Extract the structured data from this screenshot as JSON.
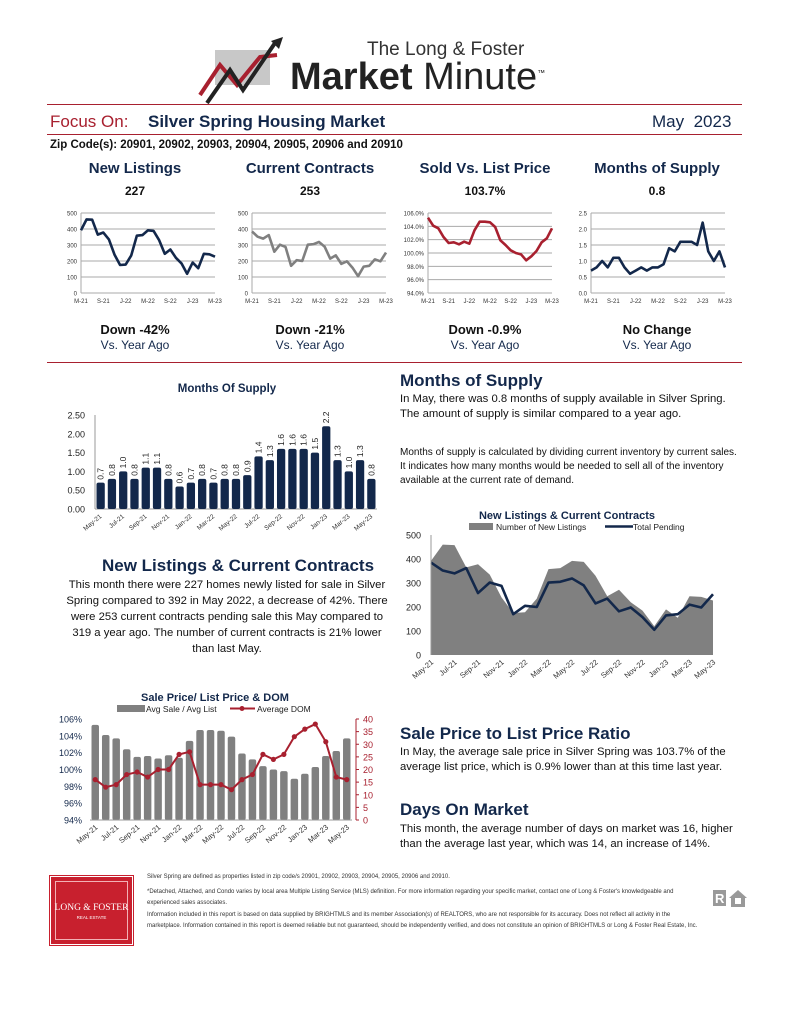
{
  "header": {
    "logo_line1": "The Long & Foster",
    "logo_line2a": "Market",
    "logo_line2b": "Minute",
    "tm": "™"
  },
  "focus": {
    "label": "Focus On:",
    "market": "Silver Spring Housing Market",
    "month": "May",
    "year": "2023"
  },
  "zip": "Zip Code(s): 20901, 20902, 20903, 20904, 20905, 20906 and 20910",
  "kpis": [
    {
      "title": "New Listings",
      "value": "227",
      "change": "Down  -42%",
      "compare": "Vs. Year Ago"
    },
    {
      "title": "Current Contracts",
      "value": "253",
      "change": "Down  -21%",
      "compare": "Vs. Year Ago"
    },
    {
      "title": "Sold Vs. List Price",
      "value": "103.7%",
      "change": "Down  -0.9%",
      "compare": "Vs. Year Ago"
    },
    {
      "title": "Months of Supply",
      "value": "0.8",
      "change": "No Change",
      "compare": "Vs. Year Ago"
    }
  ],
  "sections": {
    "mos_title": "Months of Supply",
    "mos_text1": "In May, there was 0.8 months of supply available in Silver Spring. The amount of supply is similar compared to a year ago.",
    "mos_text2": "Months of supply is calculated by dividing current inventory by current sales. It indicates how many months would be needed to sell all of the inventory available at the current rate of demand.",
    "nl_title": "New Listings & Current Contracts",
    "nl_text": "This month there were 227 homes newly listed for sale in Silver Spring compared to 392 in May 2022, a decrease of 42%. There were 253 current contracts pending sale this May compared to 319 a year ago. The number of current contracts is 21% lower than last  May.",
    "sp_title": "Sale Price to List Price Ratio",
    "sp_text": "In May, the average sale price in Silver Spring was 103.7% of the average list price, which is 0.9% lower than at this time last year.",
    "dom_title": "Days On Market",
    "dom_text": "This month, the average number of days on market was 16, higher than the average last year, which was 14, an increase of 14%."
  },
  "footer": {
    "logo": "LONG & FOSTER",
    "logo_sub": "REAL ESTATE",
    "line1": "Silver Spring are defined as properties listed in zip code/s 20901, 20902, 20903, 20904, 20905, 20906 and 20910.",
    "line2": "*Detached, Attached, and Condo varies by local area Multiple Listing Service (MLS) definition. For more information regarding your specific market, contact one of Long & Foster's knowledgeable and experienced sales associates.",
    "line3": "Information included in this report is based on data supplied by BRIGHTMLS and its member Association(s) of REALTORS, who are not responsible for its accuracy.  Does not reflect all activity in the marketplace.  Information contained in this report is deemed reliable but not guaranteed, should be independently verified, and does not constitute an opinion of BRIGHTMLS or Long & Foster Real Estate, Inc."
  },
  "colors": {
    "navy": "#13284b",
    "red": "#a8202f",
    "gray": "#808080"
  },
  "chart_data": [
    {
      "id": "mini-new-listings",
      "type": "line",
      "x_ticks": [
        "M-21",
        "S-21",
        "J-22",
        "M-22",
        "S-22",
        "J-23",
        "M-23"
      ],
      "y_ticks": [
        "0",
        "100",
        "200",
        "300",
        "400",
        "500"
      ],
      "ylim": [
        0,
        500
      ],
      "color": "#13284b",
      "values": [
        392,
        460,
        458,
        365,
        378,
        335,
        240,
        175,
        178,
        235,
        358,
        362,
        392,
        388,
        330,
        245,
        272,
        220,
        185,
        120,
        190,
        155,
        245,
        242,
        227
      ]
    },
    {
      "id": "mini-contracts",
      "type": "line",
      "x_ticks": [
        "M-21",
        "S-21",
        "J-22",
        "M-22",
        "S-22",
        "J-23",
        "M-23"
      ],
      "y_ticks": [
        "0",
        "100",
        "200",
        "300",
        "400",
        "500"
      ],
      "ylim": [
        0,
        500
      ],
      "color": "#808080",
      "values": [
        385,
        352,
        340,
        362,
        258,
        302,
        288,
        170,
        205,
        200,
        302,
        305,
        319,
        290,
        215,
        235,
        182,
        198,
        158,
        105,
        165,
        170,
        210,
        198,
        253
      ]
    },
    {
      "id": "mini-sold-list",
      "type": "line",
      "x_ticks": [
        "M-21",
        "S-21",
        "J-22",
        "M-22",
        "S-22",
        "J-23",
        "M-23"
      ],
      "y_ticks": [
        "94.0%",
        "96.0%",
        "98.0%",
        "100.0%",
        "102.0%",
        "104.0%",
        "106.0%"
      ],
      "ylim": [
        94,
        106
      ],
      "color": "#a8202f",
      "values": [
        105.3,
        104.1,
        103.7,
        102.4,
        101.5,
        101.6,
        101.3,
        101.7,
        101.4,
        103.4,
        104.7,
        104.7,
        104.6,
        103.9,
        101.9,
        101.2,
        100.4,
        100.0,
        99.8,
        98.9,
        99.5,
        100.3,
        101.6,
        102.2,
        103.7
      ]
    },
    {
      "id": "mini-mos",
      "type": "line",
      "x_ticks": [
        "M-21",
        "S-21",
        "J-22",
        "M-22",
        "S-22",
        "J-23",
        "M-23"
      ],
      "y_ticks": [
        "0.0",
        "0.5",
        "1.0",
        "1.5",
        "2.0",
        "2.5"
      ],
      "ylim": [
        0,
        2.5
      ],
      "color": "#13284b",
      "values": [
        0.7,
        0.8,
        1.0,
        0.8,
        1.1,
        1.1,
        0.8,
        0.6,
        0.7,
        0.8,
        0.7,
        0.8,
        0.8,
        0.9,
        1.4,
        1.3,
        1.6,
        1.6,
        1.6,
        1.5,
        2.2,
        1.3,
        1.0,
        1.3,
        0.8
      ]
    },
    {
      "id": "mos-bar",
      "type": "bar",
      "title": "Months Of Supply",
      "y_ticks": [
        "0.00",
        "0.50",
        "1.00",
        "1.50",
        "2.00",
        "2.50"
      ],
      "ylim": [
        0,
        2.5
      ],
      "categories": [
        "May-21",
        "Jun-21",
        "Jul-21",
        "Aug-21",
        "Sep-21",
        "Oct-21",
        "Nov-21",
        "Dec-21",
        "Jan-22",
        "Feb-22",
        "Mar-22",
        "Apr-22",
        "May-22",
        "Jun-22",
        "Jul-22",
        "Aug-22",
        "Sep-22",
        "Oct-22",
        "Nov-22",
        "Dec-22",
        "Jan-23",
        "Feb-23",
        "Mar-23",
        "Apr-23",
        "May-23"
      ],
      "values": [
        0.7,
        0.8,
        1.0,
        0.8,
        1.1,
        1.1,
        0.8,
        0.6,
        0.7,
        0.8,
        0.7,
        0.8,
        0.8,
        0.9,
        1.4,
        1.3,
        1.6,
        1.6,
        1.6,
        1.5,
        2.2,
        1.3,
        1.0,
        1.3,
        0.8
      ]
    },
    {
      "id": "nl-cc",
      "type": "area+line",
      "title": "New Listings & Current Contracts",
      "y_ticks": [
        "0",
        "100",
        "200",
        "300",
        "400",
        "500"
      ],
      "ylim": [
        0,
        500
      ],
      "legend": "top",
      "categories": [
        "May-21",
        "Jun-21",
        "Jul-21",
        "Aug-21",
        "Sep-21",
        "Oct-21",
        "Nov-21",
        "Dec-21",
        "Jan-22",
        "Feb-22",
        "Mar-22",
        "Apr-22",
        "May-22",
        "Jun-22",
        "Jul-22",
        "Aug-22",
        "Sep-22",
        "Oct-22",
        "Nov-22",
        "Dec-22",
        "Jan-23",
        "Feb-23",
        "Mar-23",
        "Apr-23",
        "May-23"
      ],
      "series": [
        {
          "name": "Number of New Listings",
          "type": "area",
          "values": [
            392,
            460,
            458,
            365,
            378,
            335,
            240,
            175,
            178,
            235,
            358,
            362,
            392,
            388,
            330,
            245,
            272,
            220,
            185,
            120,
            190,
            155,
            245,
            242,
            227
          ]
        },
        {
          "name": "Total Pending",
          "type": "line",
          "values": [
            385,
            352,
            340,
            362,
            258,
            302,
            288,
            170,
            205,
            200,
            302,
            305,
            319,
            290,
            215,
            235,
            182,
            198,
            158,
            105,
            165,
            170,
            210,
            198,
            253
          ]
        }
      ]
    },
    {
      "id": "sp-dom",
      "type": "bar+line",
      "title": "Sale Price/ List Price & DOM",
      "y_ticks": [
        "94%",
        "96%",
        "98%",
        "100%",
        "102%",
        "104%",
        "106%"
      ],
      "ylim": [
        94,
        106
      ],
      "y2_ticks": [
        "0",
        "5",
        "10",
        "15",
        "20",
        "25",
        "30",
        "35",
        "40"
      ],
      "y2lim": [
        0,
        40
      ],
      "legend": "top",
      "categories": [
        "May-21",
        "Jun-21",
        "Jul-21",
        "Aug-21",
        "Sep-21",
        "Oct-21",
        "Nov-21",
        "Dec-21",
        "Jan-22",
        "Feb-22",
        "Mar-22",
        "Apr-22",
        "May-22",
        "Jun-22",
        "Jul-22",
        "Aug-22",
        "Sep-22",
        "Oct-22",
        "Nov-22",
        "Dec-22",
        "Jan-23",
        "Feb-23",
        "Mar-23",
        "Apr-23",
        "May-23"
      ],
      "series": [
        {
          "name": "Avg Sale / Avg List",
          "type": "bar",
          "values": [
            105.3,
            104.1,
            103.7,
            102.4,
            101.5,
            101.6,
            101.3,
            101.7,
            101.4,
            103.4,
            104.7,
            104.7,
            104.6,
            103.9,
            101.9,
            101.2,
            100.4,
            100.0,
            99.8,
            98.9,
            99.5,
            100.3,
            101.6,
            102.2,
            103.7
          ]
        },
        {
          "name": "Average DOM",
          "type": "line",
          "values": [
            16,
            13,
            14,
            18,
            19,
            17,
            20,
            20,
            26,
            27,
            14,
            14,
            14,
            12,
            16,
            18,
            26,
            24,
            26,
            33,
            36,
            38,
            31,
            17,
            16
          ]
        }
      ]
    }
  ]
}
